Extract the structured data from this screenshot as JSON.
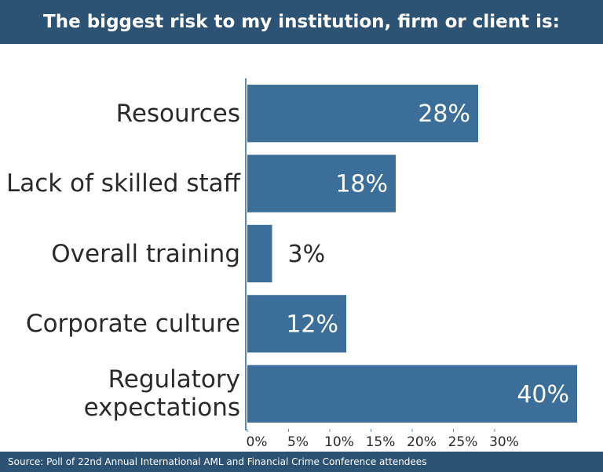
{
  "chart_data": {
    "type": "bar",
    "orientation": "horizontal",
    "title": "The biggest risk to my institution, firm or client is:",
    "source": "Source: Poll of 22nd Annual International AML and Financial Crime Conference attendees",
    "categories": [
      "Resources",
      "Lack of skilled staff",
      "Overall training",
      "Corporate culture",
      "Regulatory expectations"
    ],
    "values": [
      28,
      18,
      3,
      12,
      40
    ],
    "value_labels": [
      "28%",
      "18%",
      "3%",
      "12%",
      "40%"
    ],
    "color": "#3b6e98",
    "xlim": [
      0,
      40
    ],
    "xticks": [
      {
        "value": 0,
        "label": "0%"
      },
      {
        "value": 5,
        "label": "5%"
      },
      {
        "value": 10,
        "label": "10%"
      },
      {
        "value": 15,
        "label": "15%"
      },
      {
        "value": 20,
        "label": "20%"
      },
      {
        "value": 25,
        "label": "25%"
      },
      {
        "value": 30,
        "label": "30%"
      }
    ],
    "grid": false
  }
}
